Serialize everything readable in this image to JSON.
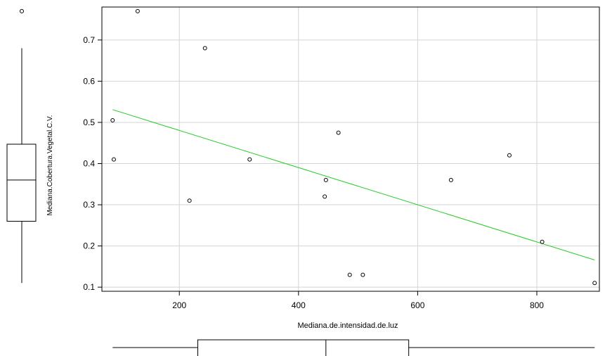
{
  "chart_data": {
    "type": "scatter",
    "title": "",
    "xlabel": "Mediana.de.intensidad.de.luz",
    "ylabel": "Mediana.Cobertura.Vegetal.C.V.",
    "xlim": [
      70,
      905
    ],
    "ylim": [
      0.09,
      0.78
    ],
    "xticks": [
      200,
      400,
      600,
      800
    ],
    "yticks": [
      0.1,
      0.2,
      0.3,
      0.4,
      0.5,
      0.6,
      0.7
    ],
    "ytick_labels": [
      "0.1",
      "0.2",
      "0.3",
      "0.4",
      "0.5",
      "0.6",
      "0.7"
    ],
    "grid": true,
    "points": [
      {
        "x": 130,
        "y": 0.77
      },
      {
        "x": 243,
        "y": 0.68
      },
      {
        "x": 88,
        "y": 0.505
      },
      {
        "x": 90,
        "y": 0.41
      },
      {
        "x": 217,
        "y": 0.31
      },
      {
        "x": 318,
        "y": 0.41
      },
      {
        "x": 467,
        "y": 0.475
      },
      {
        "x": 446,
        "y": 0.36
      },
      {
        "x": 444,
        "y": 0.32
      },
      {
        "x": 486,
        "y": 0.13
      },
      {
        "x": 508,
        "y": 0.13
      },
      {
        "x": 656,
        "y": 0.36
      },
      {
        "x": 754,
        "y": 0.42
      },
      {
        "x": 809,
        "y": 0.21
      },
      {
        "x": 897,
        "y": 0.11
      }
    ],
    "fit_line": {
      "x": [
        88,
        897
      ],
      "y": [
        0.531,
        0.166
      ],
      "color": "#22cc22"
    },
    "y_boxplot": {
      "min": 0.11,
      "q1": 0.26,
      "median": 0.36,
      "q3": 0.447,
      "max": 0.68,
      "outliers": [
        0.77
      ]
    },
    "x_boxplot": {
      "min": 88,
      "q1": 231,
      "median": 446,
      "q3": 585,
      "max": 897
    },
    "colors": {
      "grid": "#d3d3d3",
      "points": "#000000",
      "axis": "#000000",
      "fit": "#22cc22"
    }
  }
}
